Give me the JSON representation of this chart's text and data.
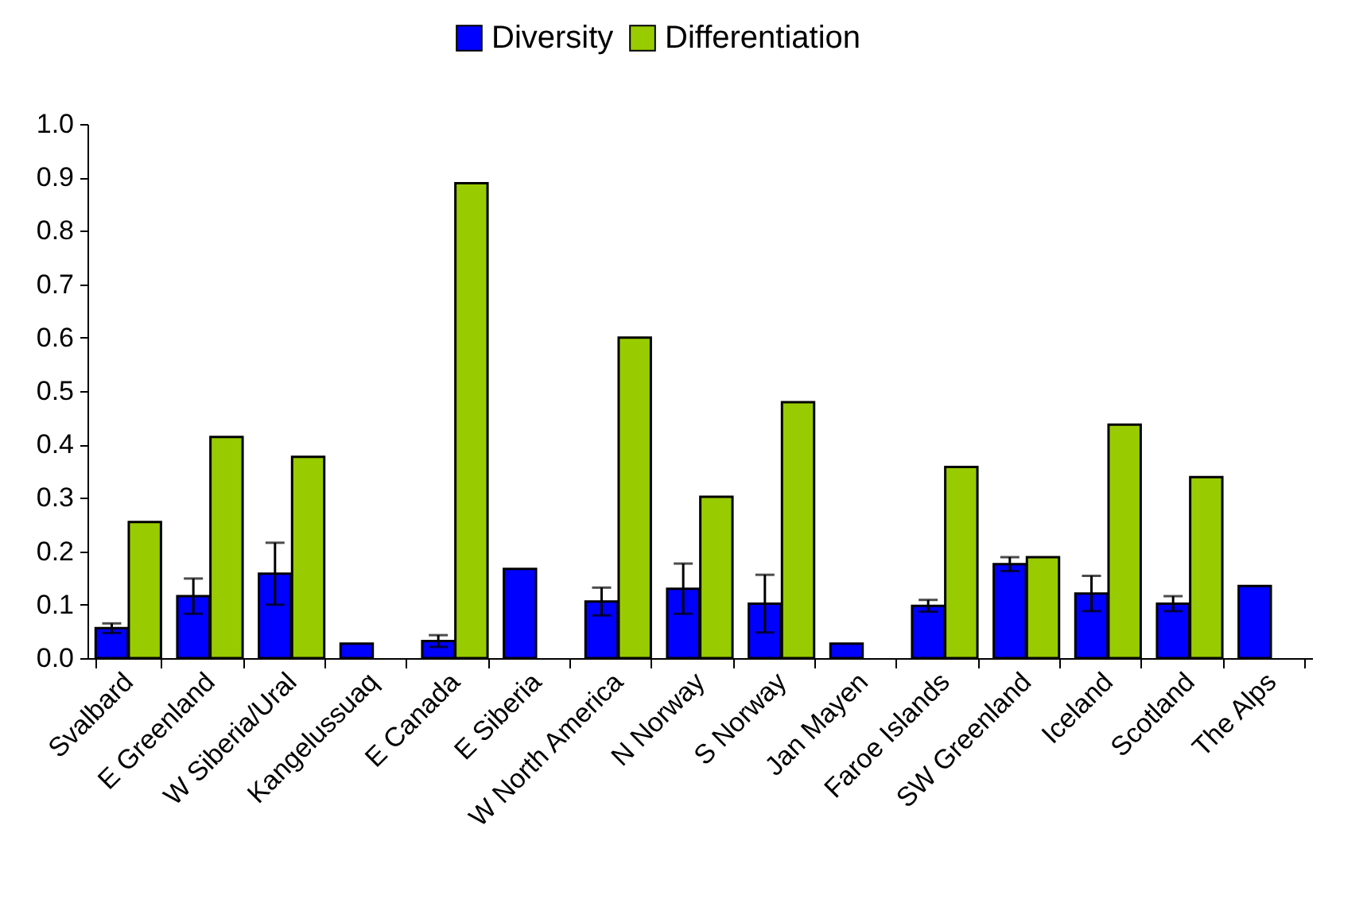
{
  "chart_data": {
    "type": "bar",
    "categories": [
      "Svalbard",
      "E Greenland",
      "W Siberia/Ural",
      "Kangelussuaq",
      "E Canada",
      "E Siberia",
      "W North America",
      "N Norway",
      "S Norway",
      "Jan Mayen",
      "Faroe Islands",
      "SW Greenland",
      "Iceland",
      "Scotland",
      "The Alps"
    ],
    "series": [
      {
        "name": "Diversity",
        "color": "#0000ff",
        "values": [
          0.056,
          0.116,
          0.158,
          0.027,
          0.032,
          0.167,
          0.106,
          0.13,
          0.102,
          0.027,
          0.098,
          0.176,
          0.121,
          0.102,
          0.135
        ],
        "errors": [
          0.009,
          0.033,
          0.058,
          null,
          0.011,
          null,
          0.026,
          0.047,
          0.054,
          null,
          0.011,
          0.013,
          0.033,
          0.014,
          null
        ]
      },
      {
        "name": "Differentiation",
        "color": "#99cc00",
        "values": [
          0.255,
          0.414,
          0.377,
          null,
          0.889,
          null,
          0.6,
          0.302,
          0.479,
          null,
          0.358,
          0.189,
          0.437,
          0.339,
          null
        ]
      }
    ],
    "ylim": [
      0,
      1
    ],
    "yticks": [
      {
        "value": 0,
        "label": "0.0"
      },
      {
        "value": 0.1,
        "label": "0.1"
      },
      {
        "value": 0.2,
        "label": "0.2"
      },
      {
        "value": 0.3,
        "label": "0.3"
      },
      {
        "value": 0.4,
        "label": "0.4"
      },
      {
        "value": 0.5,
        "label": "0.5"
      },
      {
        "value": 0.6,
        "label": "0.6"
      },
      {
        "value": 0.7,
        "label": "0.7"
      },
      {
        "value": 0.8,
        "label": "0.8"
      },
      {
        "value": 0.9,
        "label": "0.9"
      },
      {
        "value": 1,
        "label": "1.0"
      }
    ],
    "grid": false,
    "legend": "top"
  }
}
